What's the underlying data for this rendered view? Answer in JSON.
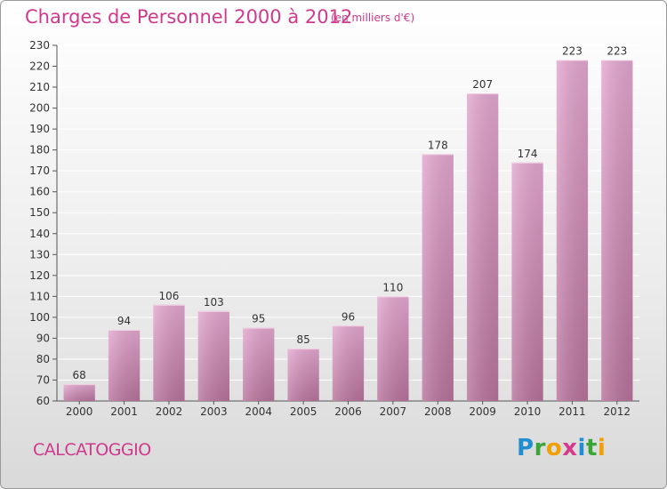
{
  "title": "Charges de Personnel 2000 à 2012",
  "unit_note": "(en milliers d'€)",
  "commune": "CALCATOGGIO",
  "logo": {
    "text": "Proxiti",
    "letters": [
      {
        "ch": "P",
        "color": "#1f8fd1"
      },
      {
        "ch": "r",
        "color": "#3aa63a"
      },
      {
        "ch": "o",
        "color": "#f0a000"
      },
      {
        "ch": "x",
        "color": "#d63a8a"
      },
      {
        "ch": "i",
        "color": "#1f8fd1"
      },
      {
        "ch": "t",
        "color": "#3aa63a"
      },
      {
        "ch": "i",
        "color": "#f0a000"
      }
    ]
  },
  "colors": {
    "title": "#d0398b",
    "bar_top": "#e3a7cf",
    "bar_bottom": "#b8739c",
    "axis": "#555555",
    "grid": "#ffffff"
  },
  "chart_data": {
    "type": "bar",
    "title": "Charges de Personnel 2000 à 2012",
    "categories": [
      "2000",
      "2001",
      "2002",
      "2003",
      "2004",
      "2005",
      "2006",
      "2007",
      "2008",
      "2009",
      "2010",
      "2011",
      "2012"
    ],
    "values": [
      68,
      94,
      106,
      103,
      95,
      85,
      96,
      110,
      178,
      207,
      174,
      223,
      223
    ],
    "ylim": [
      60,
      230
    ],
    "yticks": [
      60,
      70,
      80,
      90,
      100,
      110,
      120,
      130,
      140,
      150,
      160,
      170,
      180,
      190,
      200,
      210,
      220,
      230
    ],
    "grid": true,
    "data_labels": true
  }
}
